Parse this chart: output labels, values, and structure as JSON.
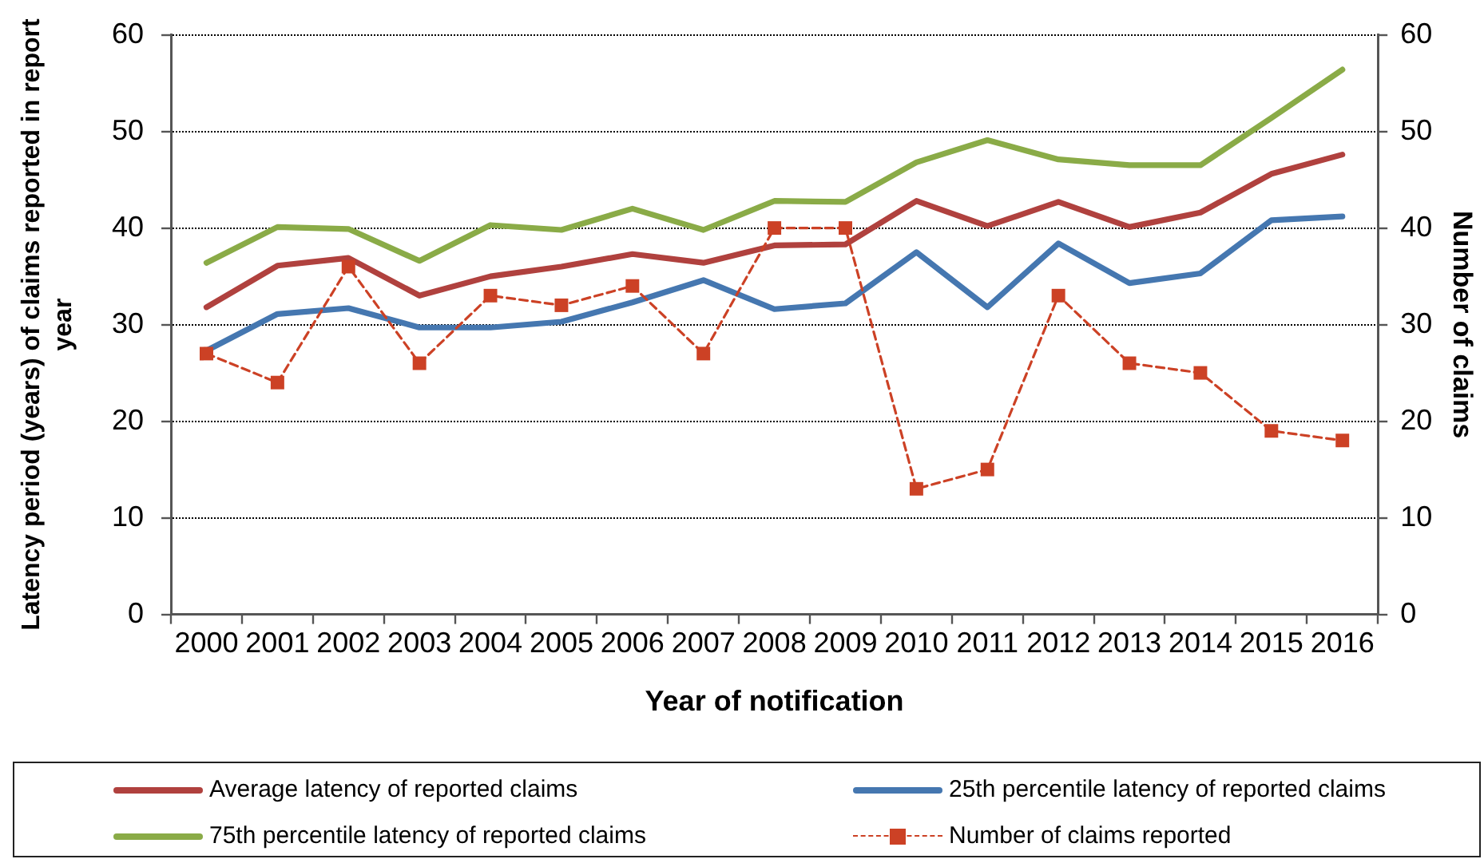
{
  "chart_data": {
    "type": "line",
    "categories": [
      "2000",
      "2001",
      "2002",
      "2003",
      "2004",
      "2005",
      "2006",
      "2007",
      "2008",
      "2009",
      "2010",
      "2011",
      "2012",
      "2013",
      "2014",
      "2015",
      "2016"
    ],
    "xlabel": "Year of notification",
    "ylabel": "Latency period (years) of claims reported in report year",
    "y2label": "Number of claims",
    "ylim": [
      0,
      60
    ],
    "yticks": [
      0,
      10,
      20,
      30,
      40,
      50,
      60
    ],
    "y2lim": [
      0,
      60
    ],
    "y2ticks": [
      0,
      10,
      20,
      30,
      40,
      50,
      60
    ],
    "grid": "y",
    "legend": "bottom",
    "series": [
      {
        "name": "Average latency of reported claims",
        "color": "#b0413e",
        "marker": "none",
        "line_style": "solid",
        "values": [
          31.8,
          36.1,
          36.9,
          33.0,
          35.0,
          36.0,
          37.3,
          36.4,
          38.2,
          38.3,
          42.8,
          40.2,
          42.7,
          40.1,
          41.6,
          45.6,
          47.6
        ]
      },
      {
        "name": "25th percentile latency of reported claims",
        "color": "#4577b0",
        "marker": "none",
        "line_style": "solid",
        "values": [
          27.3,
          31.1,
          31.7,
          29.7,
          29.7,
          30.3,
          32.3,
          34.6,
          31.6,
          32.2,
          37.5,
          31.8,
          38.4,
          34.3,
          35.3,
          40.8,
          41.2
        ]
      },
      {
        "name": "75th percentile latency of reported claims",
        "color": "#8aab47",
        "marker": "none",
        "line_style": "solid",
        "values": [
          36.4,
          40.1,
          39.9,
          36.6,
          40.3,
          39.8,
          42.0,
          39.8,
          42.8,
          42.7,
          46.8,
          49.1,
          47.1,
          46.5,
          46.5,
          51.4,
          56.4
        ]
      },
      {
        "name": "Number of claims reported",
        "color": "#cc4125",
        "axis": "y2",
        "marker": "square",
        "line_style": "dashed",
        "values": [
          27,
          24,
          36,
          26,
          33,
          32,
          34,
          27,
          40,
          40,
          13,
          15,
          33,
          26,
          25,
          19,
          18
        ]
      }
    ]
  }
}
